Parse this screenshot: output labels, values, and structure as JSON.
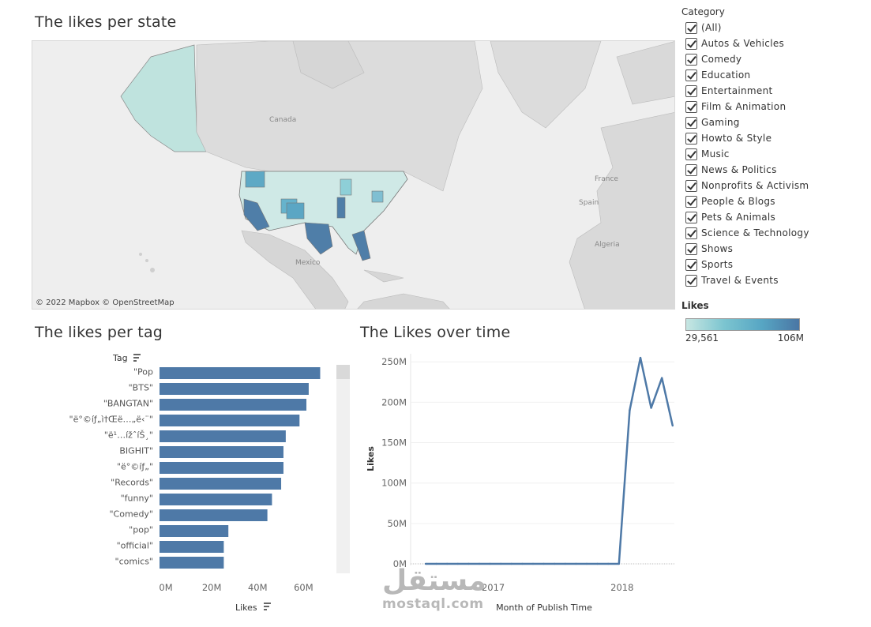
{
  "map": {
    "title": "The likes per state",
    "attribution": "© 2022 Mapbox  © OpenStreetMap",
    "labels": {
      "canada": "Canada",
      "mexico": "Mexico",
      "france": "France",
      "spain": "Spain",
      "algeria": "Algeria"
    }
  },
  "filter": {
    "title": "Category",
    "items": [
      {
        "label": "(All)",
        "checked": true
      },
      {
        "label": "Autos & Vehicles",
        "checked": true
      },
      {
        "label": "Comedy",
        "checked": true
      },
      {
        "label": "Education",
        "checked": true
      },
      {
        "label": "Entertainment",
        "checked": true
      },
      {
        "label": "Film & Animation",
        "checked": true
      },
      {
        "label": "Gaming",
        "checked": true
      },
      {
        "label": "Howto & Style",
        "checked": true
      },
      {
        "label": "Music",
        "checked": true
      },
      {
        "label": "News & Politics",
        "checked": true
      },
      {
        "label": "Nonprofits & Activism",
        "checked": true
      },
      {
        "label": "People & Blogs",
        "checked": true
      },
      {
        "label": "Pets & Animals",
        "checked": true
      },
      {
        "label": "Science & Technology",
        "checked": true
      },
      {
        "label": "Shows",
        "checked": true
      },
      {
        "label": "Sports",
        "checked": true
      },
      {
        "label": "Travel & Events",
        "checked": true
      }
    ]
  },
  "legend": {
    "title": "Likes",
    "min_label": "29,561",
    "max_label": "106M",
    "colors": [
      "#c7e6e2",
      "#7cc5d0",
      "#57a6c4",
      "#4a76a4"
    ]
  },
  "watermark": {
    "arabic": "مستقل",
    "latin": "mostaql.com"
  },
  "chart_data": [
    {
      "type": "bar",
      "title": "The likes per tag",
      "orientation": "horizontal",
      "categories": [
        "\"Pop",
        "\"BTS\"",
        "\"BANGTAN\"",
        "\"ë°©íƒ„ì†Œë…„ë‹¨\"",
        "\"ë¹…ížˆíŠ¸\"",
        "BIGHIT\"",
        "\"ë°©íƒ„\"",
        "\"Records\"",
        "\"funny\"",
        "\"Comedy\"",
        "\"pop\"",
        "\"official\"",
        "\"comics\""
      ],
      "category_display": [
        "\"Pop",
        "\"BTS\"",
        "\"BANGTAN\"",
        "\"ë°©íƒ„ì†Œë…„ë‹¨\"",
        "\"ë¹…ížˆíŠ¸\"",
        "BIGHIT\"",
        "\"ë°©íƒ„\"",
        "\"Records\"",
        "\"funny\"",
        "\"Comedy\"",
        "\"pop\"",
        "\"official\"",
        "\"comics\""
      ],
      "values": [
        70,
        65,
        64,
        61,
        55,
        54,
        54,
        53,
        49,
        47,
        30,
        28,
        28
      ],
      "units": "M",
      "xlabel": "Likes",
      "ylabel": "Tag",
      "xlim": [
        0,
        75
      ],
      "xticks": [
        0,
        20,
        40,
        60
      ],
      "xtick_labels": [
        "0M",
        "20M",
        "40M",
        "60M"
      ],
      "color": "#4e79a7"
    },
    {
      "type": "line",
      "title": "The Likes over time",
      "xlabel": "Month of Publish Time",
      "ylabel": "Likes",
      "ylim": [
        0,
        260
      ],
      "yticks": [
        0,
        50,
        100,
        150,
        200,
        250
      ],
      "ytick_labels": [
        "0M",
        "50M",
        "100M",
        "150M",
        "200M",
        "250M"
      ],
      "xtick_labels": [
        "2017",
        "2018"
      ],
      "x": [
        "2016-07",
        "2016-08",
        "2016-09",
        "2016-10",
        "2016-11",
        "2016-12",
        "2017-01",
        "2017-02",
        "2017-03",
        "2017-04",
        "2017-05",
        "2017-06",
        "2017-07",
        "2017-08",
        "2017-09",
        "2017-10",
        "2017-11",
        "2017-12",
        "2018-01",
        "2018-02",
        "2018-03",
        "2018-04",
        "2018-05",
        "2018-06"
      ],
      "values": [
        0,
        0,
        0,
        0,
        0,
        0,
        0,
        0,
        0,
        0,
        0,
        0,
        0,
        0,
        0,
        0,
        0,
        0,
        0,
        190,
        255,
        193,
        230,
        171
      ],
      "color": "#4e79a7"
    }
  ]
}
